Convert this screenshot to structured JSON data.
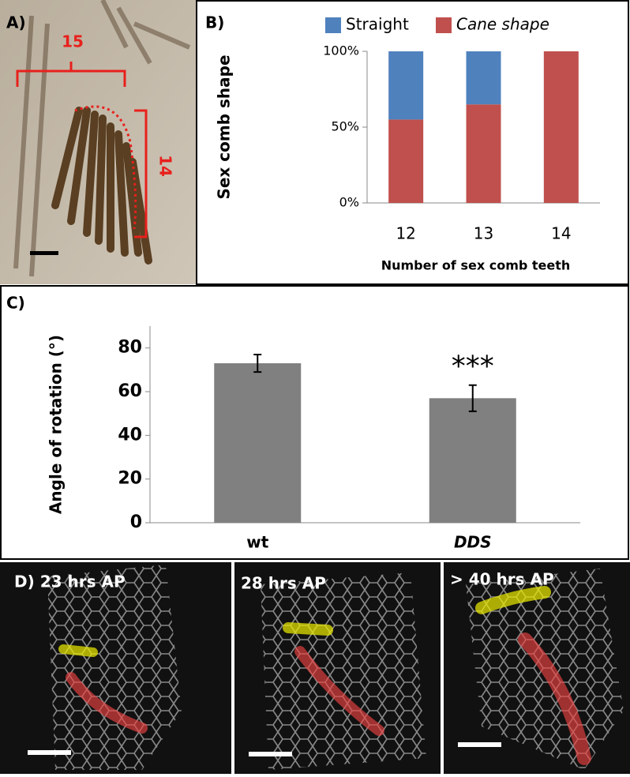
{
  "panels": {
    "A": {
      "label": "A)",
      "annotations": [
        "15",
        "14"
      ]
    },
    "B": {
      "label": "B)"
    },
    "C": {
      "label": "C)"
    },
    "D": {
      "labels": [
        "D) 23 hrs AP",
        "28 hrs AP",
        "> 40 hrs AP"
      ]
    }
  },
  "chart_data": [
    {
      "type": "bar",
      "stacked": true,
      "categories": [
        "12",
        "13",
        "14"
      ],
      "series": [
        {
          "name": "Straight",
          "color": "#4f81bd",
          "values": [
            45,
            35,
            0
          ]
        },
        {
          "name": "Cane shape",
          "color": "#c0504d",
          "italic": true,
          "values": [
            55,
            65,
            100
          ]
        }
      ],
      "ylim": [
        0,
        100
      ],
      "yticks": [
        {
          "value": 0,
          "label": "0%"
        },
        {
          "value": 50,
          "label": "50%"
        },
        {
          "value": 100,
          "label": "100%"
        }
      ],
      "y_label": "Sex comb shape",
      "x_label": "Number of sex comb teeth",
      "legend": "top"
    },
    {
      "type": "bar",
      "categories": [
        "wt",
        "DDS"
      ],
      "category_italic": [
        false,
        true
      ],
      "values": [
        73,
        57
      ],
      "errors": [
        4,
        6
      ],
      "color": "#808080",
      "ylim": [
        0,
        90
      ],
      "yticks": [
        0,
        20,
        40,
        60,
        80
      ],
      "y_label": "Angle of rotation (°)",
      "annotations": [
        {
          "text": "***",
          "category": 1
        }
      ]
    }
  ]
}
